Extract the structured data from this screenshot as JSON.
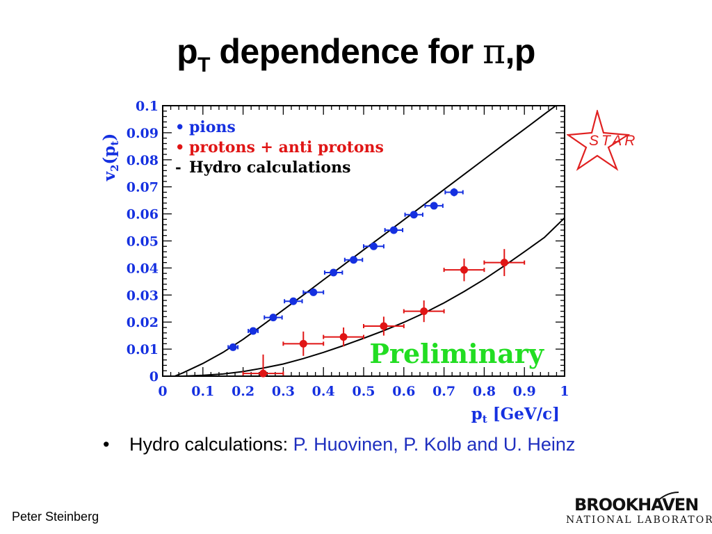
{
  "slide": {
    "title_main": "p",
    "title_sub": "T",
    "title_rest": " dependence for ",
    "title_pi": "π",
    "title_end": ",p",
    "bullet_marker": "•",
    "bullet_text": "Hydro calculations: ",
    "bullet_cite": "P. Huovinen, P. Kolb and U. Heinz",
    "author": "Peter Steinberg",
    "logo_star_text": "STAR",
    "logo_bnl_line1": "BROOKHAVEN",
    "logo_bnl_line2": "NATIONAL LABORATORY"
  },
  "chart_data": {
    "type": "scatter",
    "xlabel": "p",
    "xlabel_sub": "t",
    "xlabel_unit": " [GeV/c]",
    "ylabel": "v",
    "ylabel_sub": "2",
    "ylabel_paren_open": "(p",
    "ylabel_sub2": "t",
    "ylabel_paren_close": ")",
    "xlim": [
      0,
      1
    ],
    "ylim": [
      0,
      0.1
    ],
    "xticks": [
      "0",
      "0.1",
      "0.2",
      "0.3",
      "0.4",
      "0.5",
      "0.6",
      "0.7",
      "0.8",
      "0.9",
      "1"
    ],
    "yticks": [
      "0",
      "0.01",
      "0.02",
      "0.03",
      "0.04",
      "0.05",
      "0.06",
      "0.07",
      "0.08",
      "0.09",
      "0.1"
    ],
    "annotation": "Preliminary",
    "annotation_color": "#22dd22",
    "legend": [
      {
        "marker": "•",
        "text": "pions",
        "color": "#1530e0"
      },
      {
        "marker": "•",
        "text": "protons + anti protons",
        "color": "#e01515"
      },
      {
        "marker": "-",
        "text": "Hydro calculations",
        "color": "#000000"
      }
    ],
    "series": [
      {
        "name": "pions",
        "color": "#1530e0",
        "points": [
          {
            "x": 0.175,
            "y": 0.0107,
            "xerr": 0.012,
            "yerr": 0.0008
          },
          {
            "x": 0.225,
            "y": 0.0167,
            "xerr": 0.012,
            "yerr": 0.0008
          },
          {
            "x": 0.275,
            "y": 0.0217,
            "xerr": 0.022,
            "yerr": 0.0008
          },
          {
            "x": 0.325,
            "y": 0.0277,
            "xerr": 0.022,
            "yerr": 0.0008
          },
          {
            "x": 0.375,
            "y": 0.031,
            "xerr": 0.025,
            "yerr": 0.0008
          },
          {
            "x": 0.425,
            "y": 0.0383,
            "xerr": 0.022,
            "yerr": 0.0008
          },
          {
            "x": 0.475,
            "y": 0.043,
            "xerr": 0.022,
            "yerr": 0.0008
          },
          {
            "x": 0.525,
            "y": 0.048,
            "xerr": 0.025,
            "yerr": 0.0008
          },
          {
            "x": 0.575,
            "y": 0.054,
            "xerr": 0.022,
            "yerr": 0.0008
          },
          {
            "x": 0.625,
            "y": 0.0597,
            "xerr": 0.022,
            "yerr": 0.0008
          },
          {
            "x": 0.675,
            "y": 0.063,
            "xerr": 0.022,
            "yerr": 0.0012
          },
          {
            "x": 0.725,
            "y": 0.068,
            "xerr": 0.022,
            "yerr": 0.0015
          }
        ]
      },
      {
        "name": "protons + anti protons",
        "color": "#e01515",
        "points": [
          {
            "x": 0.25,
            "y": 0.001,
            "xerr": 0.05,
            "yerr": 0.007
          },
          {
            "x": 0.35,
            "y": 0.012,
            "xerr": 0.05,
            "yerr": 0.0045
          },
          {
            "x": 0.45,
            "y": 0.0145,
            "xerr": 0.05,
            "yerr": 0.0035
          },
          {
            "x": 0.55,
            "y": 0.0185,
            "xerr": 0.05,
            "yerr": 0.0035
          },
          {
            "x": 0.65,
            "y": 0.024,
            "xerr": 0.05,
            "yerr": 0.004
          },
          {
            "x": 0.75,
            "y": 0.0393,
            "xerr": 0.05,
            "yerr": 0.0042
          },
          {
            "x": 0.85,
            "y": 0.042,
            "xerr": 0.05,
            "yerr": 0.005
          }
        ]
      }
    ],
    "curves": [
      {
        "name": "",
        "color": "#000000",
        "points": [
          [
            0.03,
            0.0
          ],
          [
            0.05,
            0.0012
          ],
          [
            0.1,
            0.0047
          ],
          [
            0.15,
            0.0088
          ],
          [
            0.2,
            0.0136
          ],
          [
            0.25,
            0.019
          ],
          [
            0.3,
            0.0245
          ],
          [
            0.35,
            0.03
          ],
          [
            0.4,
            0.0356
          ],
          [
            0.45,
            0.0411
          ],
          [
            0.5,
            0.0467
          ],
          [
            0.55,
            0.0522
          ],
          [
            0.6,
            0.0578
          ],
          [
            0.65,
            0.0634
          ],
          [
            0.7,
            0.069
          ],
          [
            0.75,
            0.0746
          ],
          [
            0.8,
            0.0802
          ],
          [
            0.85,
            0.0858
          ],
          [
            0.9,
            0.0913
          ],
          [
            0.95,
            0.0969
          ],
          [
            0.99,
            0.1013
          ]
        ]
      },
      {
        "name": "",
        "color": "#000000",
        "points": [
          [
            0.05,
            0.0
          ],
          [
            0.1,
            0.0003
          ],
          [
            0.15,
            0.0008
          ],
          [
            0.2,
            0.0017
          ],
          [
            0.25,
            0.003
          ],
          [
            0.3,
            0.0045
          ],
          [
            0.35,
            0.0065
          ],
          [
            0.4,
            0.0088
          ],
          [
            0.45,
            0.0113
          ],
          [
            0.5,
            0.014
          ],
          [
            0.55,
            0.0168
          ],
          [
            0.6,
            0.0199
          ],
          [
            0.65,
            0.0233
          ],
          [
            0.7,
            0.0271
          ],
          [
            0.75,
            0.0313
          ],
          [
            0.8,
            0.0358
          ],
          [
            0.85,
            0.0408
          ],
          [
            0.9,
            0.046
          ],
          [
            0.95,
            0.0513
          ],
          [
            1.0,
            0.0585
          ]
        ]
      }
    ]
  }
}
